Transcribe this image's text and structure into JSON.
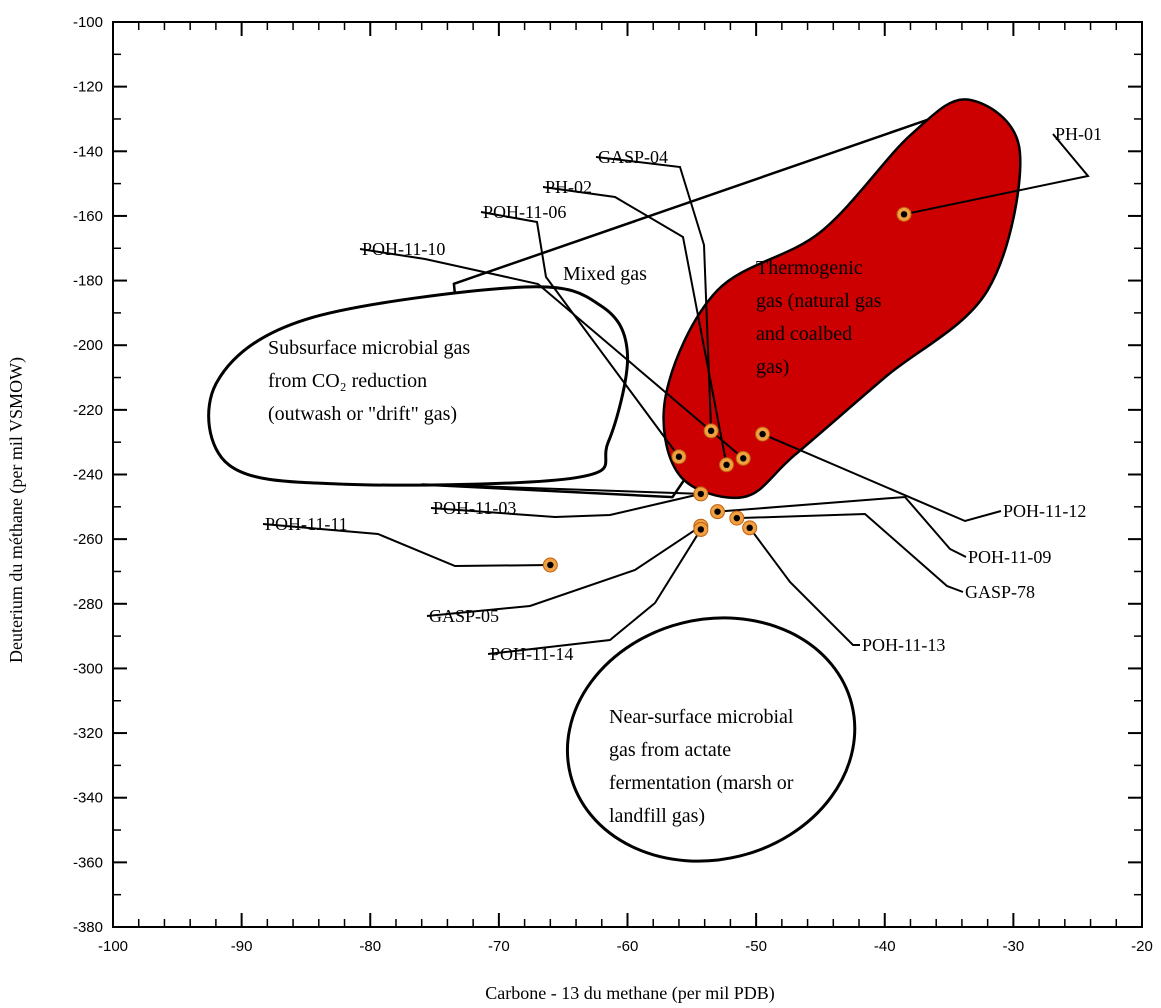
{
  "chart_data": {
    "type": "scatter",
    "title": "",
    "xlabel": "Carbone - 13 du methane (per mil PDB)",
    "ylabel": "Deuterium du méthane (per mil VSMOW)",
    "xlim": [
      -100,
      -20
    ],
    "ylim": [
      -380,
      -100
    ],
    "xticks": [
      -100,
      -90,
      -80,
      -70,
      -60,
      -50,
      -40,
      -30,
      -20
    ],
    "yticks": [
      -100,
      -120,
      -140,
      -160,
      -180,
      -200,
      -220,
      -240,
      -260,
      -280,
      -300,
      -320,
      -340,
      -360,
      -380
    ],
    "grid": false,
    "colors": {
      "thermogenic_fill": "#cc0000",
      "point_ring": "#f0a040",
      "point_center": "#000000"
    },
    "zones": [
      {
        "key": "subsurface",
        "lines": [
          "Subsurface microbial gas",
          "from CO₂ reduction",
          "(outwash or \"drift\" gas)"
        ]
      },
      {
        "key": "thermogenic",
        "lines": [
          "Thermogenic",
          "gas (natural gas",
          "and coalbed",
          "gas)"
        ]
      },
      {
        "key": "mixed",
        "lines": [
          "Mixed gas"
        ]
      },
      {
        "key": "nearsurface",
        "lines": [
          "Near-surface microbial",
          "gas from actate",
          "fermentation (marsh or",
          "landfill gas)"
        ]
      }
    ],
    "points": [
      {
        "name": "PH-01",
        "x": -38.5,
        "y": -159.5
      },
      {
        "name": "GASP-04",
        "x": -53.5,
        "y": -226.5
      },
      {
        "name": "PH-02",
        "x": -52.3,
        "y": -237.0
      },
      {
        "name": "POH-11-06",
        "x": -56.0,
        "y": -234.5
      },
      {
        "name": "POH-11-10",
        "x": -51.0,
        "y": -235.0
      },
      {
        "name": "POH-11-12",
        "x": -49.5,
        "y": -227.5
      },
      {
        "name": "POH-11-09",
        "x": -53.0,
        "y": -251.5
      },
      {
        "name": "GASP-78",
        "x": -51.5,
        "y": -253.5
      },
      {
        "name": "POH-11-03",
        "x": -54.3,
        "y": -246.0
      },
      {
        "name": "POH-11-11",
        "x": -66.0,
        "y": -268.0
      },
      {
        "name": "GASP-05",
        "x": -54.3,
        "y": -256.0
      },
      {
        "name": "POH-11-14",
        "x": -54.3,
        "y": -257.0
      },
      {
        "name": "POH-11-13",
        "x": -50.5,
        "y": -256.5
      }
    ]
  }
}
